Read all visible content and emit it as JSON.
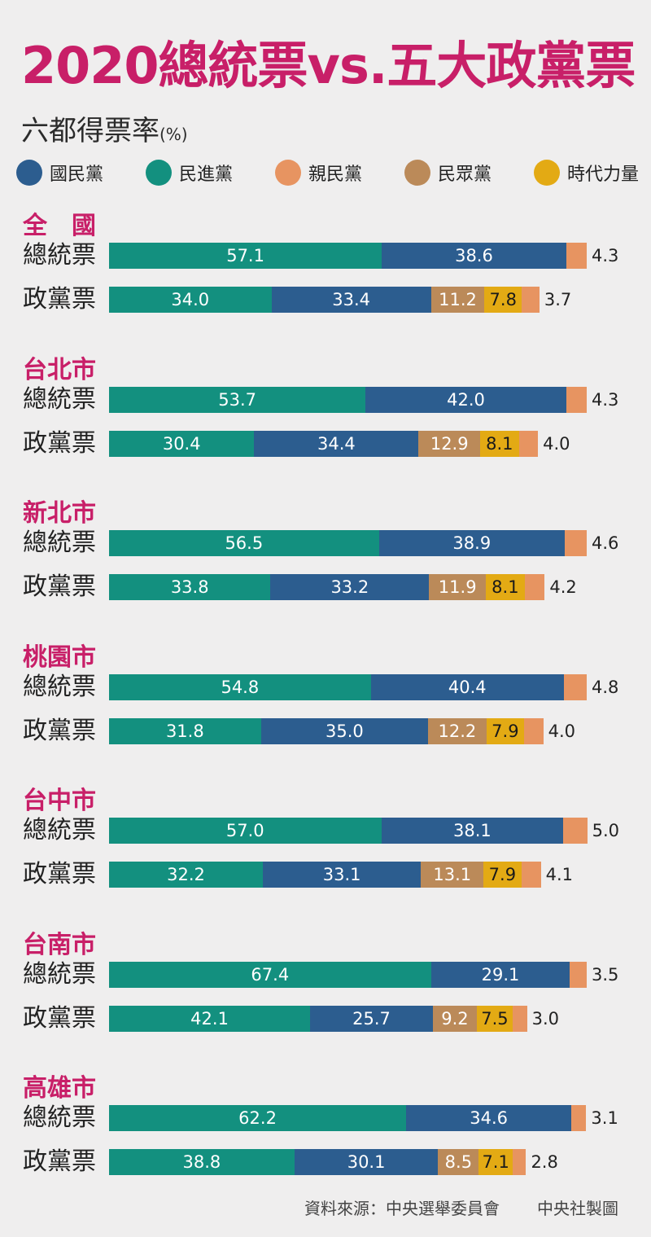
{
  "title": "2020總統票vs.五大政黨票",
  "subtitle": "六都得票率",
  "subtitle_unit": "(%)",
  "colors": {
    "kmt": "#2c5d8f",
    "dpp": "#13907f",
    "pfp": "#e79461",
    "tpp": "#bb8a59",
    "npp": "#e3aa14",
    "title": "#c81f68"
  },
  "legend": [
    {
      "key": "kmt",
      "label": "國民黨"
    },
    {
      "key": "dpp",
      "label": "民進黨"
    },
    {
      "key": "pfp",
      "label": "親民黨"
    },
    {
      "key": "tpp",
      "label": "民眾黨"
    },
    {
      "key": "npp",
      "label": "時代力量"
    }
  ],
  "row_labels": {
    "president": "總統票",
    "party": "政黨票"
  },
  "source_text": "資料來源：中央選舉委員會",
  "credit_text": "中央社製圖",
  "chart_data": {
    "type": "bar",
    "stacked": true,
    "orientation": "horizontal",
    "unit": "%",
    "series_order_president": [
      "dpp",
      "kmt",
      "pfp"
    ],
    "series_order_party": [
      "dpp",
      "kmt",
      "tpp",
      "npp",
      "pfp"
    ],
    "regions": [
      {
        "name": "全　國",
        "president": {
          "dpp": 57.1,
          "kmt": 38.6,
          "pfp": 4.3
        },
        "party": {
          "dpp": 34.0,
          "kmt": 33.4,
          "tpp": 11.2,
          "npp": 7.8,
          "pfp": 3.7
        }
      },
      {
        "name": "台北市",
        "president": {
          "dpp": 53.7,
          "kmt": 42.0,
          "pfp": 4.3
        },
        "party": {
          "dpp": 30.4,
          "kmt": 34.4,
          "tpp": 12.9,
          "npp": 8.1,
          "pfp": 4.0
        }
      },
      {
        "name": "新北市",
        "president": {
          "dpp": 56.5,
          "kmt": 38.9,
          "pfp": 4.6
        },
        "party": {
          "dpp": 33.8,
          "kmt": 33.2,
          "tpp": 11.9,
          "npp": 8.1,
          "pfp": 4.2
        }
      },
      {
        "name": "桃園市",
        "president": {
          "dpp": 54.8,
          "kmt": 40.4,
          "pfp": 4.8
        },
        "party": {
          "dpp": 31.8,
          "kmt": 35.0,
          "tpp": 12.2,
          "npp": 7.9,
          "pfp": 4.0
        }
      },
      {
        "name": "台中市",
        "president": {
          "dpp": 57.0,
          "kmt": 38.1,
          "pfp": 5.0
        },
        "party": {
          "dpp": 32.2,
          "kmt": 33.1,
          "tpp": 13.1,
          "npp": 7.9,
          "pfp": 4.1
        }
      },
      {
        "name": "台南市",
        "president": {
          "dpp": 67.4,
          "kmt": 29.1,
          "pfp": 3.5
        },
        "party": {
          "dpp": 42.1,
          "kmt": 25.7,
          "tpp": 9.2,
          "npp": 7.5,
          "pfp": 3.0
        }
      },
      {
        "name": "高雄市",
        "president": {
          "dpp": 62.2,
          "kmt": 34.6,
          "pfp": 3.1
        },
        "party": {
          "dpp": 38.8,
          "kmt": 30.1,
          "tpp": 8.5,
          "npp": 7.1,
          "pfp": 2.8
        }
      }
    ]
  }
}
